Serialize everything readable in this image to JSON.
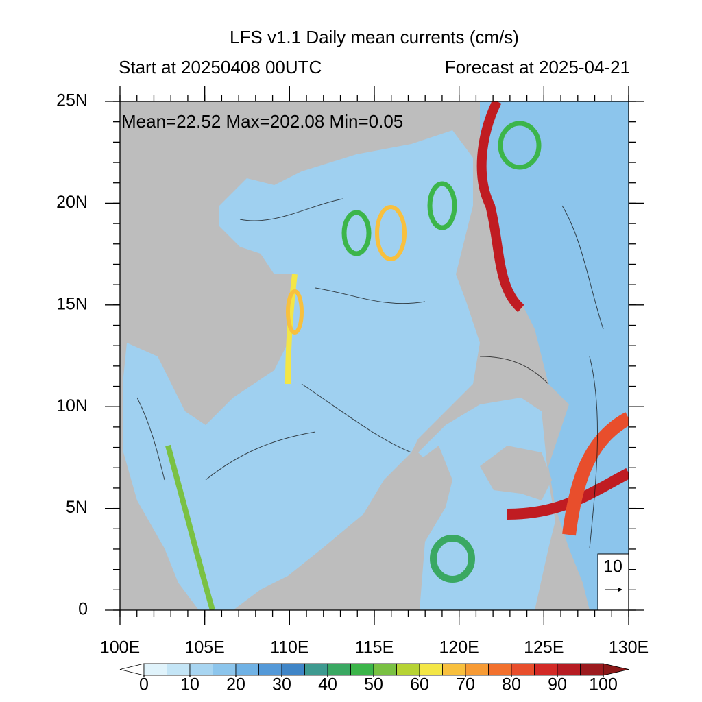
{
  "title": "LFS v1.1 Daily mean currents (cm/s)",
  "subtitle_left": "Start at 20250408 00UTC",
  "subtitle_right": "Forecast at 2025-04-21",
  "stats": "Mean=22.52  Max=202.08  Min=0.05",
  "reference_vector": {
    "label": "10"
  },
  "map": {
    "xlim": [
      100,
      130
    ],
    "ylim": [
      0,
      25
    ],
    "xticks": [
      {
        "value": 100,
        "label": "100E"
      },
      {
        "value": 105,
        "label": "105E"
      },
      {
        "value": 110,
        "label": "110E"
      },
      {
        "value": 115,
        "label": "115E"
      },
      {
        "value": 120,
        "label": "120E"
      },
      {
        "value": 125,
        "label": "125E"
      },
      {
        "value": 130,
        "label": "130E"
      }
    ],
    "yticks": [
      0,
      {
        "value": 5,
        "label": "5N"
      },
      {
        "value": 10,
        "label": "10N"
      },
      {
        "value": 15,
        "label": "15N"
      },
      {
        "value": 20,
        "label": "20N"
      },
      {
        "value": 25,
        "label": "25N"
      }
    ]
  },
  "colorbar": {
    "lim": [
      0,
      100
    ],
    "ticks": [
      0,
      10,
      20,
      30,
      40,
      50,
      60,
      70,
      80,
      90,
      100
    ],
    "colors": [
      "#ffffff",
      "#e0f3fb",
      "#c4e5f6",
      "#a8d5f1",
      "#8cc5ec",
      "#70b2e5",
      "#5499d8",
      "#3f85c7",
      "#3e9a90",
      "#3aa862",
      "#3cb54a",
      "#7ac143",
      "#b6d334",
      "#f3e646",
      "#f8c03e",
      "#f79b35",
      "#f2712e",
      "#e84e2c",
      "#d32a26",
      "#b71c22",
      "#9c1a1e",
      "#8b1818"
    ]
  }
}
